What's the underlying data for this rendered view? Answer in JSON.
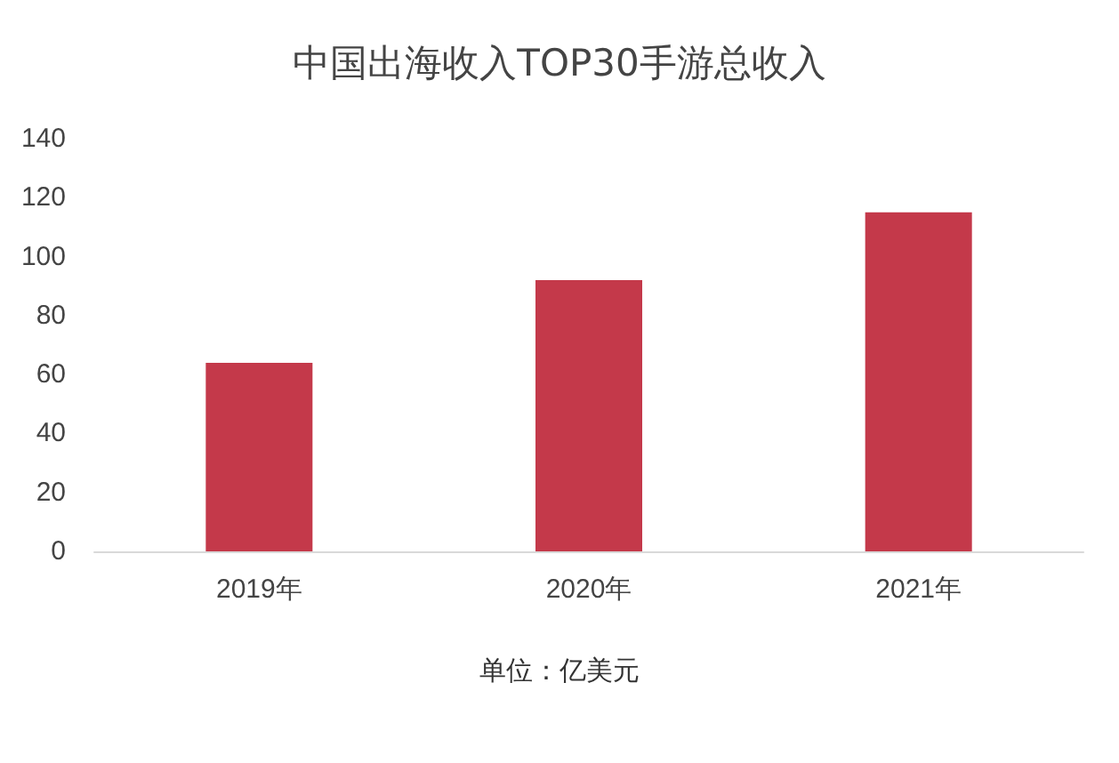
{
  "chart_data": {
    "type": "bar",
    "title": "中国出海收入TOP30手游总收入",
    "categories": [
      "2019年",
      "2020年",
      "2021年"
    ],
    "series": [
      {
        "color": "#c4394a",
        "values": [
          64,
          92,
          115
        ]
      }
    ],
    "ylim": [
      0,
      140
    ],
    "yticks": [
      0,
      20,
      40,
      60,
      80,
      100,
      120,
      140
    ],
    "grid": false,
    "annotations": [
      "单位：亿美元"
    ]
  }
}
